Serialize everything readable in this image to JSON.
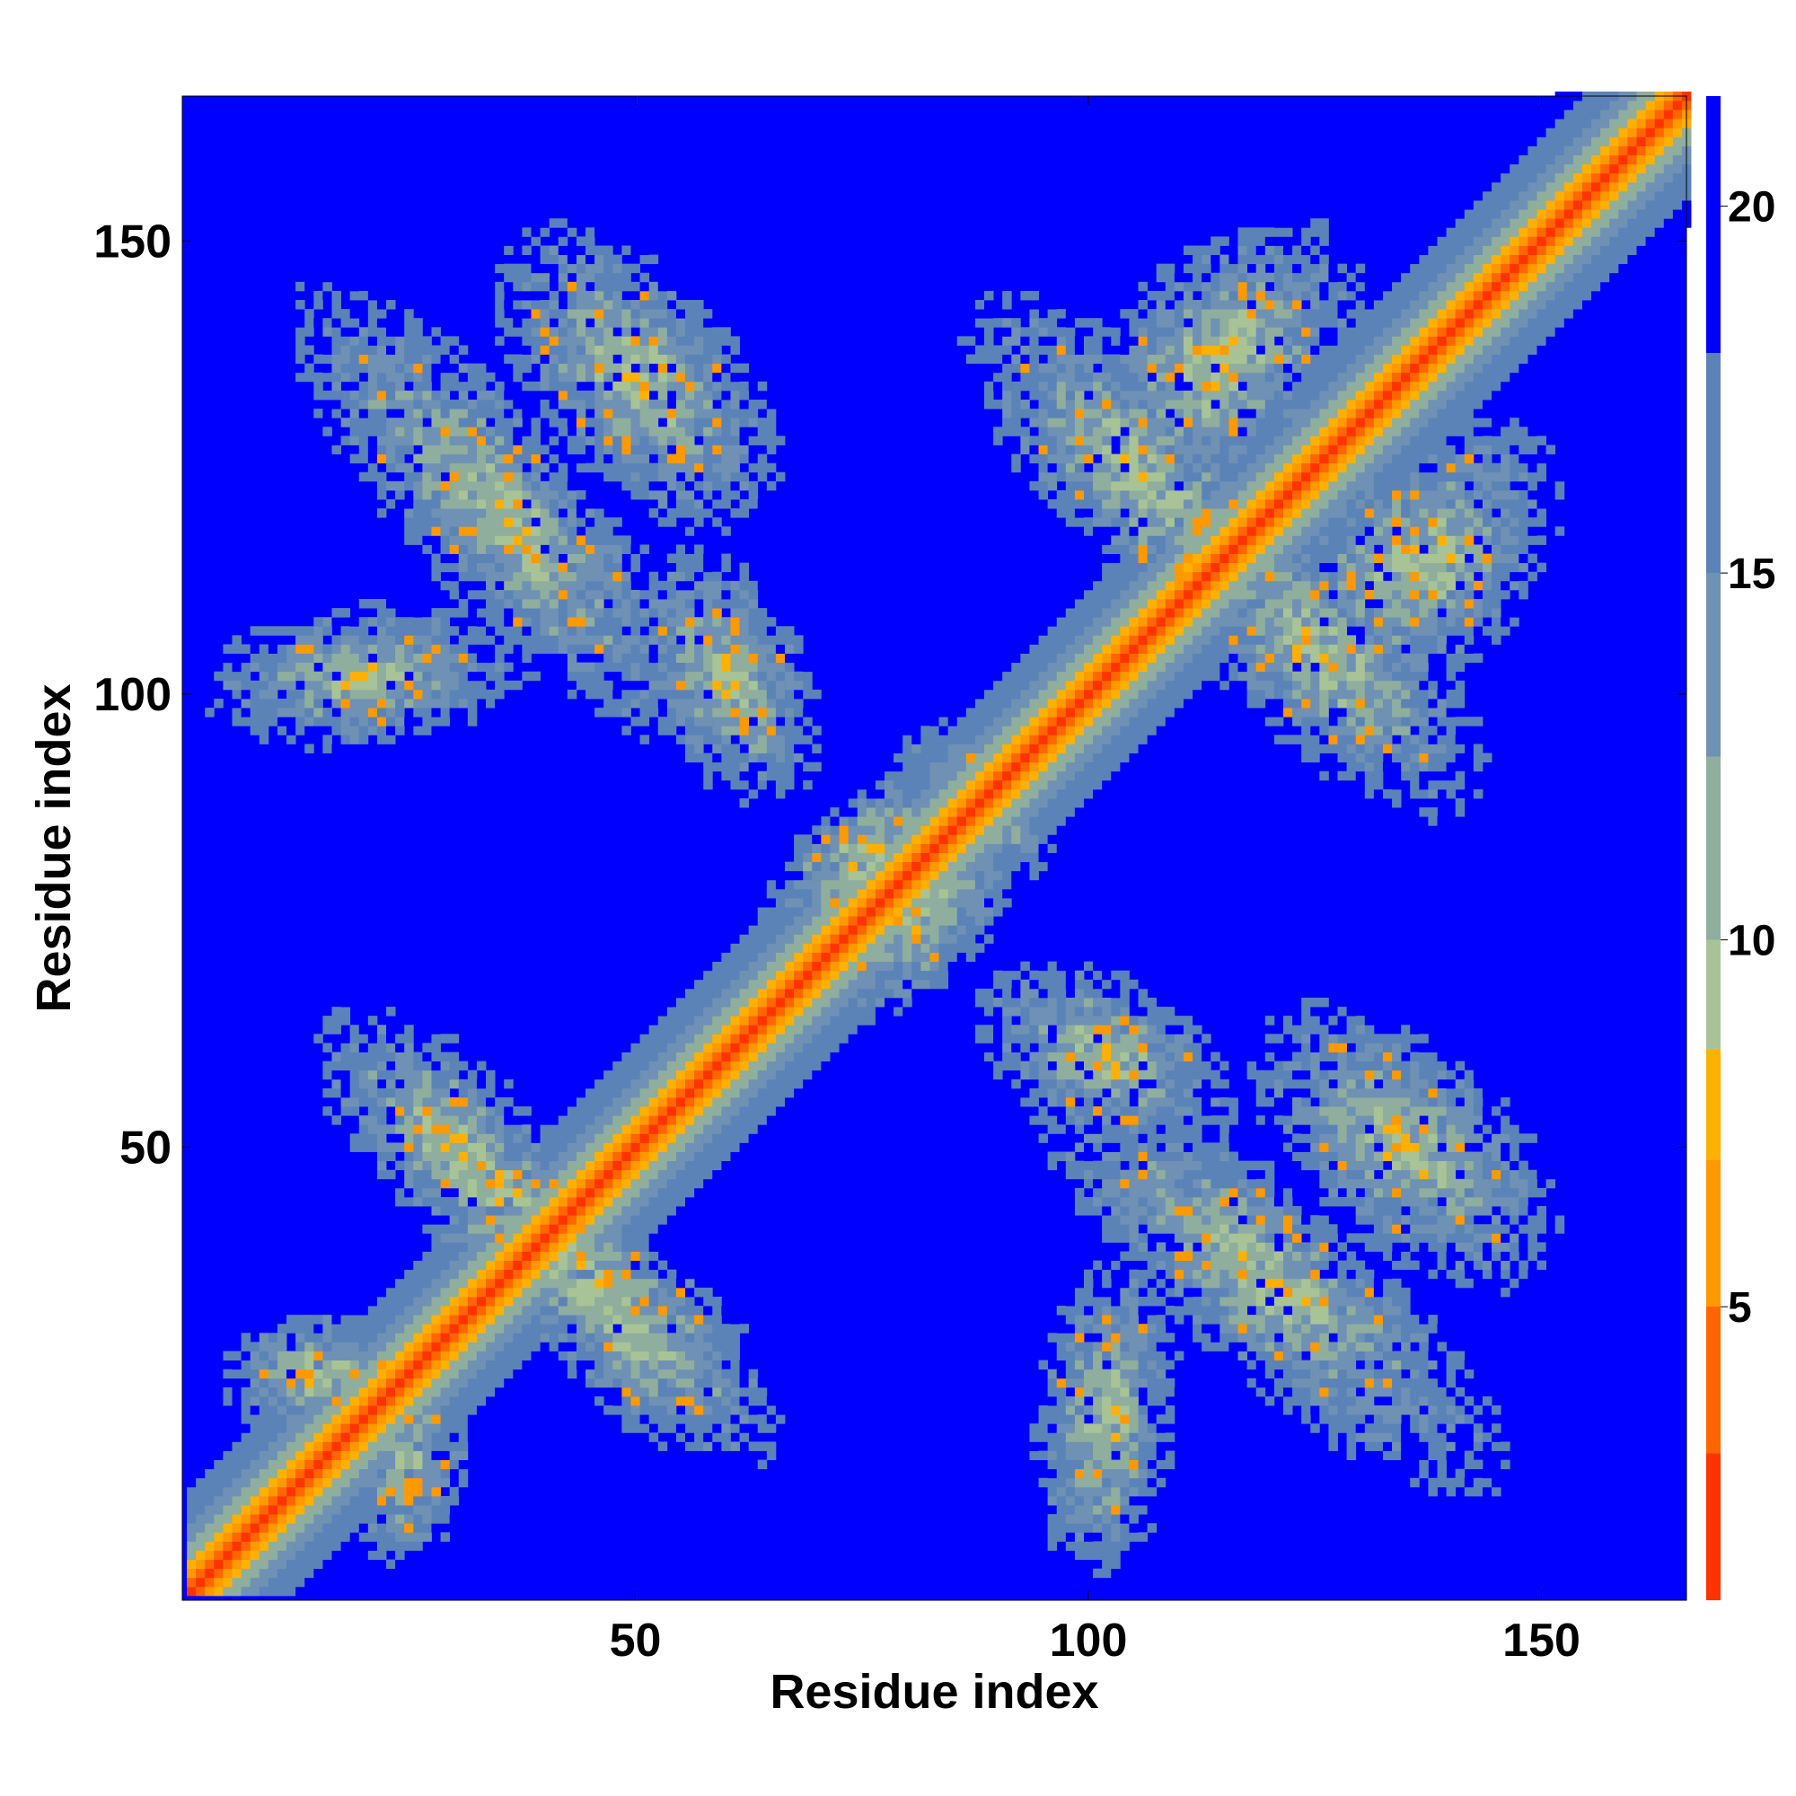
{
  "chart_data": {
    "type": "heatmap",
    "title": "",
    "xlabel": "Residue index",
    "ylabel": "Residue index",
    "x_range": [
      1,
      166
    ],
    "y_range": [
      1,
      166
    ],
    "x_ticks": [
      50,
      100,
      150
    ],
    "y_ticks": [
      50,
      100,
      150
    ],
    "x_tick_labels": [
      "50",
      "100",
      "150"
    ],
    "y_tick_labels": [
      "50",
      "100",
      "150"
    ],
    "grid": false,
    "colorbar": {
      "placement": "right",
      "range": [
        1,
        21.5
      ],
      "ticks": [
        5,
        10,
        15,
        20
      ],
      "tick_labels": [
        "5",
        "10",
        "15",
        "20"
      ],
      "colors": [
        "#ff0000",
        "#ff3300",
        "#ff6600",
        "#ff9900",
        "#ffb000",
        "#a8c496",
        "#8fae9e",
        "#6f91b4",
        "#5b83b8",
        "#0000ff"
      ],
      "color_stops": [
        1,
        3,
        5,
        7,
        8.5,
        10,
        12.5,
        15,
        18,
        20
      ]
    },
    "background_value": 21,
    "description_values": {
      "diagonal_band": "distances near 3-8 along main diagonal, widening to ~20 within ~15 residues",
      "off_diagonal_contacts": [
        {
          "region": "residues 1-60 x 95-160 (upper left)",
          "min_value": 6
        },
        {
          "region": "residues 95-160 x 1-60 (lower right, mirror)",
          "min_value": 6
        },
        {
          "region": "residues 95-155 x 95-160 (upper right block)",
          "min_value": 8
        },
        {
          "region": "residues 5-60 x 5-60 (lower left block)",
          "min_value": 8
        },
        {
          "region": "residues 60-85 x 60-85 (central crossing)",
          "min_value": 7
        }
      ]
    }
  }
}
